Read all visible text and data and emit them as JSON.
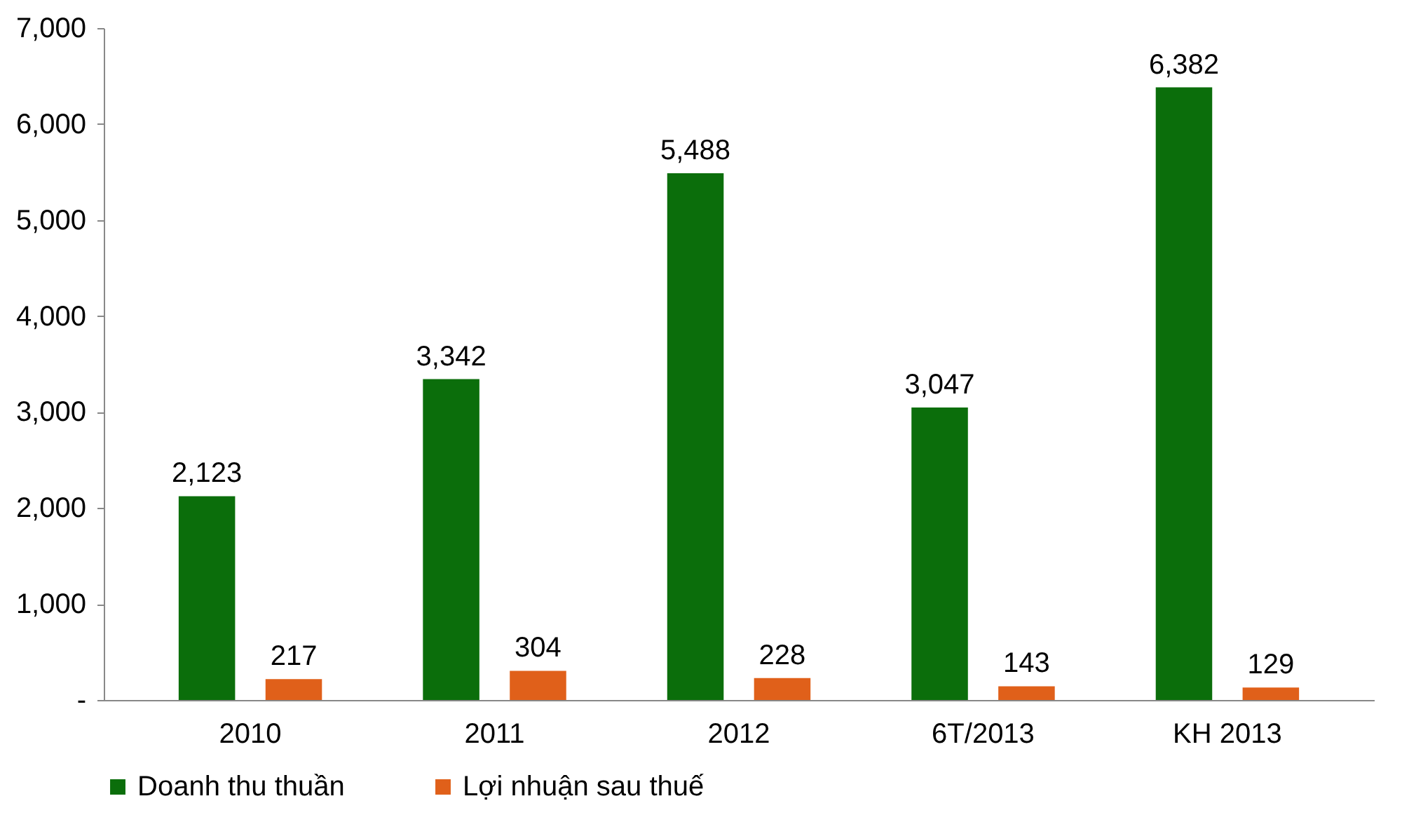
{
  "chart_data": {
    "type": "bar",
    "categories": [
      "2010",
      "2011",
      "2012",
      "6T/2013",
      "KH 2013"
    ],
    "series": [
      {
        "name": "Doanh thu thuần",
        "color": "#0b6e0b",
        "values": [
          2123,
          3342,
          5488,
          3047,
          6382
        ],
        "value_labels": [
          "2,123",
          "3,342",
          "5,488",
          "3,047",
          "6,382"
        ]
      },
      {
        "name": "Lợi nhuận sau thuế",
        "color": "#e0601a",
        "values": [
          217,
          304,
          228,
          143,
          129
        ],
        "value_labels": [
          "217",
          "304",
          "228",
          "143",
          "129"
        ]
      }
    ],
    "ylim": [
      0,
      7000
    ],
    "yticks": [
      {
        "value": 0,
        "label": "-"
      },
      {
        "value": 1000,
        "label": "1,000"
      },
      {
        "value": 2000,
        "label": "2,000"
      },
      {
        "value": 3000,
        "label": "3,000"
      },
      {
        "value": 4000,
        "label": "4,000"
      },
      {
        "value": 5000,
        "label": "5,000"
      },
      {
        "value": 6000,
        "label": "6,000"
      },
      {
        "value": 7000,
        "label": "7,000"
      }
    ],
    "grid": false,
    "legend": "bottom"
  }
}
